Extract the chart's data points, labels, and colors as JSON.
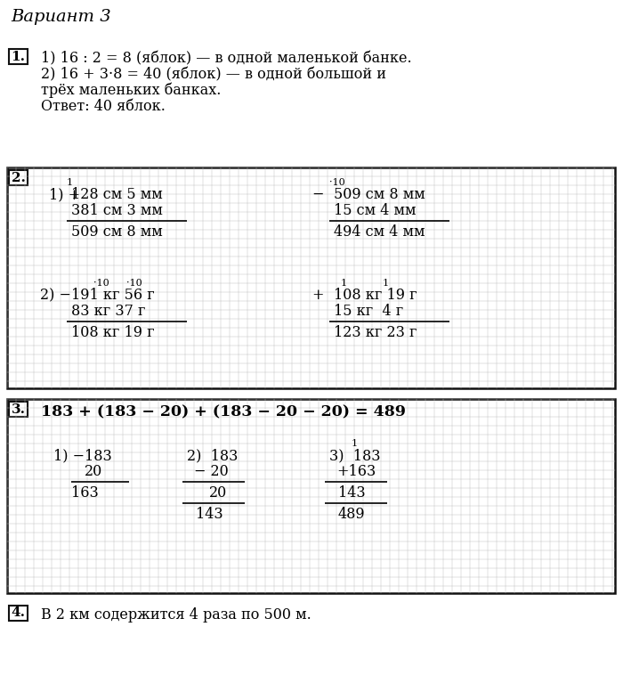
{
  "title": "Вариант 3",
  "bg_color": "#ffffff",
  "section1_lines": [
    "1) 16 : 2 = 8 (яблок) — в одной маленькой банке.",
    "2) 16 + 3·8 = 40 (яблок) — в одной большой и",
    "трёх маленьких банках.",
    "Ответ: 40 яблок."
  ],
  "section4_text": "В 2 км содержится 4 раза по 500 м.",
  "s2_equation": "183 + (183 − 20) + (183 − 20 − 20) = 489"
}
